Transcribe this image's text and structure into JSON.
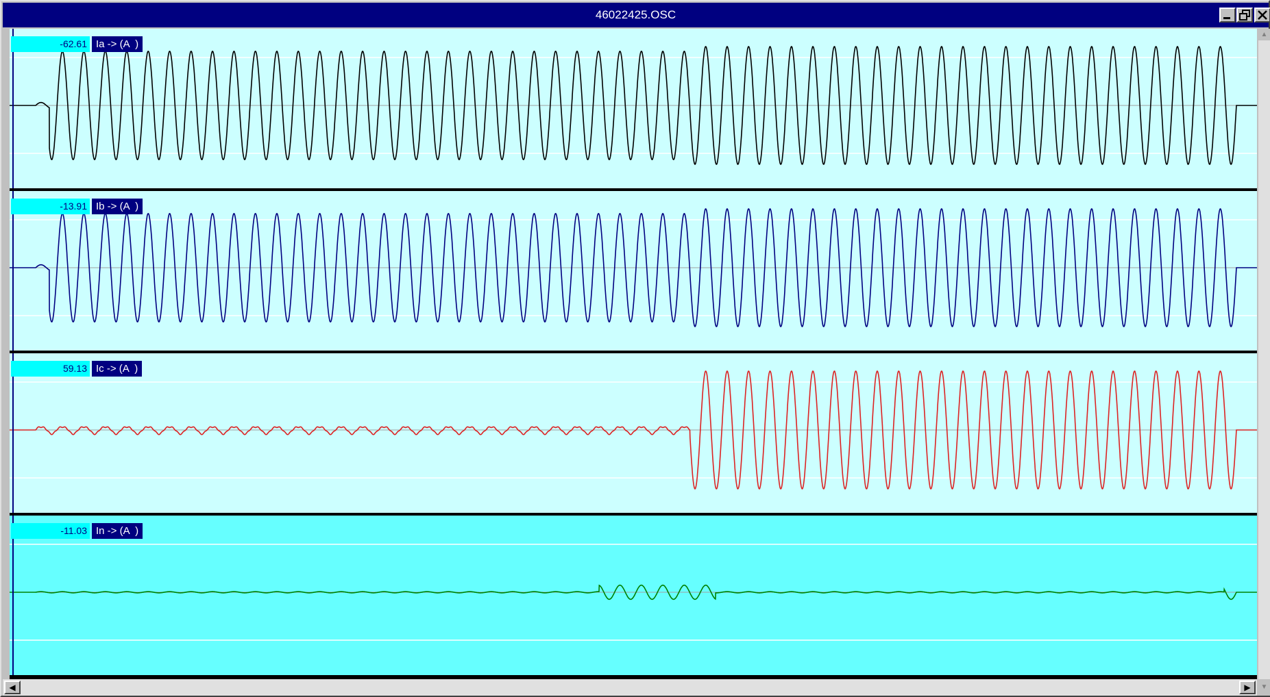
{
  "window": {
    "title": "46022425.OSC",
    "controls": [
      "minimize-icon",
      "restore-icon",
      "close-icon"
    ]
  },
  "panels": [
    {
      "value": "-62.61",
      "label": "Ia -> (A  )",
      "wave_color": "#000000",
      "selected": false,
      "signal": {
        "pre_fault_cycles": 1.5,
        "amplitude_before": 0.92,
        "amplitude_after": 1.0,
        "change_fraction": 0.545
      }
    },
    {
      "value": "-13.91",
      "label": "Ib -> (A  )",
      "wave_color": "#000080",
      "selected": false,
      "signal": {
        "pre_fault_cycles": 1.5,
        "amplitude_before": 0.92,
        "amplitude_after": 1.0,
        "change_fraction": 0.545
      }
    },
    {
      "value": "59.13",
      "label": "Ic -> (A  )",
      "wave_color": "#dd2222",
      "selected": false,
      "signal": {
        "pre_fault_cycles": 0,
        "amplitude_before": 0.06,
        "amplitude_after": 1.0,
        "change_fraction": 0.545
      }
    },
    {
      "value": "-11.03",
      "label": "In -> (A  )",
      "wave_color": "#008000",
      "selected": true,
      "signal": {
        "pre_fault_cycles": 0,
        "amplitude_before": 0,
        "amplitude_after": 0,
        "change_fraction": 0.545
      }
    }
  ],
  "colors": {
    "titlebar": "#000080",
    "panel_bg": "#ccffff",
    "selected_panel_bg": "#66ffff",
    "value_box": "#00ffff",
    "gridline": "#ffffff"
  }
}
